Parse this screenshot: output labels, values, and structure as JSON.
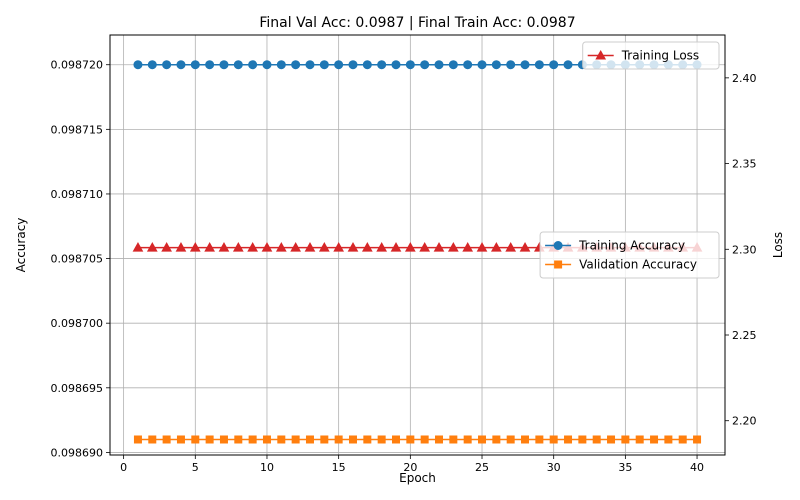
{
  "chart_data": {
    "type": "line",
    "title": "Final Val Acc: 0.0987 | Final Train Acc: 0.0987",
    "xlabel": "Epoch",
    "ylabel": "Accuracy",
    "y2label": "Loss",
    "x": [
      1,
      2,
      3,
      4,
      5,
      6,
      7,
      8,
      9,
      10,
      11,
      12,
      13,
      14,
      15,
      16,
      17,
      18,
      19,
      20,
      21,
      22,
      23,
      24,
      25,
      26,
      27,
      28,
      29,
      30,
      31,
      32,
      33,
      34,
      35,
      36,
      37,
      38,
      39,
      40
    ],
    "xlim": [
      -0.95,
      41.95
    ],
    "ylim": [
      0.0986898,
      0.0987223
    ],
    "y2lim": [
      2.18,
      2.425
    ],
    "xticks": [
      0,
      5,
      10,
      15,
      20,
      25,
      30,
      35,
      40
    ],
    "yticks": [
      0.09869,
      0.098695,
      0.0987,
      0.098705,
      0.09871,
      0.098715,
      0.09872
    ],
    "y2ticks": [
      2.2,
      2.25,
      2.3,
      2.35,
      2.4
    ],
    "xtick_labels": [
      "0",
      "5",
      "10",
      "15",
      "20",
      "25",
      "30",
      "35",
      "40"
    ],
    "ytick_labels": [
      "0.098690",
      "0.098695",
      "0.098700",
      "0.098705",
      "0.098710",
      "0.098715",
      "0.098720"
    ],
    "y2tick_labels": [
      "2.20",
      "2.25",
      "2.30",
      "2.35",
      "2.40"
    ],
    "grid": true,
    "series": [
      {
        "name": "Training Accuracy",
        "axis": "left",
        "color": "#1f77b4",
        "marker": "circle",
        "values": [
          0.09872,
          0.09872,
          0.09872,
          0.09872,
          0.09872,
          0.09872,
          0.09872,
          0.09872,
          0.09872,
          0.09872,
          0.09872,
          0.09872,
          0.09872,
          0.09872,
          0.09872,
          0.09872,
          0.09872,
          0.09872,
          0.09872,
          0.09872,
          0.09872,
          0.09872,
          0.09872,
          0.09872,
          0.09872,
          0.09872,
          0.09872,
          0.09872,
          0.09872,
          0.09872,
          0.09872,
          0.09872,
          0.09872,
          0.09872,
          0.09872,
          0.09872,
          0.09872,
          0.09872,
          0.09872,
          0.09872
        ]
      },
      {
        "name": "Validation Accuracy",
        "axis": "left",
        "color": "#ff7f0e",
        "marker": "square",
        "values": [
          0.098691,
          0.098691,
          0.098691,
          0.098691,
          0.098691,
          0.098691,
          0.098691,
          0.098691,
          0.098691,
          0.098691,
          0.098691,
          0.098691,
          0.098691,
          0.098691,
          0.098691,
          0.098691,
          0.098691,
          0.098691,
          0.098691,
          0.098691,
          0.098691,
          0.098691,
          0.098691,
          0.098691,
          0.098691,
          0.098691,
          0.098691,
          0.098691,
          0.098691,
          0.098691,
          0.098691,
          0.098691,
          0.098691,
          0.098691,
          0.098691,
          0.098691,
          0.098691,
          0.098691,
          0.098691,
          0.098691
        ]
      },
      {
        "name": "Training Loss",
        "axis": "right",
        "color": "#d62728",
        "marker": "triangle",
        "values": [
          2.301,
          2.301,
          2.301,
          2.301,
          2.301,
          2.301,
          2.301,
          2.301,
          2.301,
          2.301,
          2.301,
          2.301,
          2.301,
          2.301,
          2.301,
          2.301,
          2.301,
          2.301,
          2.301,
          2.301,
          2.301,
          2.301,
          2.301,
          2.301,
          2.301,
          2.301,
          2.301,
          2.301,
          2.301,
          2.301,
          2.301,
          2.301,
          2.301,
          2.301,
          2.301,
          2.301,
          2.301,
          2.301,
          2.301,
          2.301
        ]
      }
    ],
    "legends": [
      {
        "placement": "center-right",
        "entries": [
          "Training Accuracy",
          "Validation Accuracy"
        ]
      },
      {
        "placement": "top-right",
        "entries": [
          "Training Loss"
        ]
      }
    ]
  }
}
